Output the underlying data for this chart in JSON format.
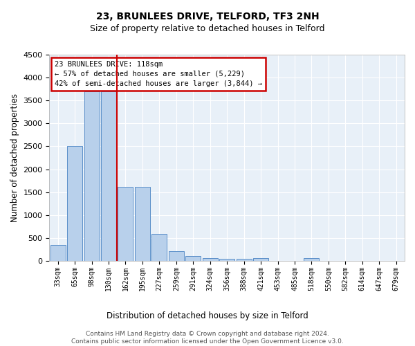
{
  "title": "23, BRUNLEES DRIVE, TELFORD, TF3 2NH",
  "subtitle": "Size of property relative to detached houses in Telford",
  "xlabel": "Distribution of detached houses by size in Telford",
  "ylabel": "Number of detached properties",
  "footer_line1": "Contains HM Land Registry data © Crown copyright and database right 2024.",
  "footer_line2": "Contains public sector information licensed under the Open Government Licence v3.0.",
  "categories": [
    "33sqm",
    "65sqm",
    "98sqm",
    "130sqm",
    "162sqm",
    "195sqm",
    "227sqm",
    "259sqm",
    "291sqm",
    "324sqm",
    "356sqm",
    "388sqm",
    "421sqm",
    "453sqm",
    "485sqm",
    "518sqm",
    "550sqm",
    "582sqm",
    "614sqm",
    "647sqm",
    "679sqm"
  ],
  "values": [
    350,
    2500,
    3700,
    3700,
    1620,
    1620,
    590,
    220,
    100,
    60,
    40,
    40,
    60,
    0,
    0,
    60,
    0,
    0,
    0,
    0,
    0
  ],
  "bar_color": "#b8d0eb",
  "bar_edge_color": "#5b8fc9",
  "property_line_x": 3.5,
  "property_line_color": "#cc0000",
  "ylim": [
    0,
    4500
  ],
  "yticks": [
    0,
    500,
    1000,
    1500,
    2000,
    2500,
    3000,
    3500,
    4000,
    4500
  ],
  "annotation_line1": "23 BRUNLEES DRIVE: 118sqm",
  "annotation_line2": "← 57% of detached houses are smaller (5,229)",
  "annotation_line3": "42% of semi-detached houses are larger (3,844) →",
  "annotation_box_edgecolor": "#cc0000",
  "plot_background": "#e8f0f8",
  "grid_color": "#ffffff",
  "title_fontsize": 10,
  "subtitle_fontsize": 9,
  "footer_fontsize": 6.5
}
